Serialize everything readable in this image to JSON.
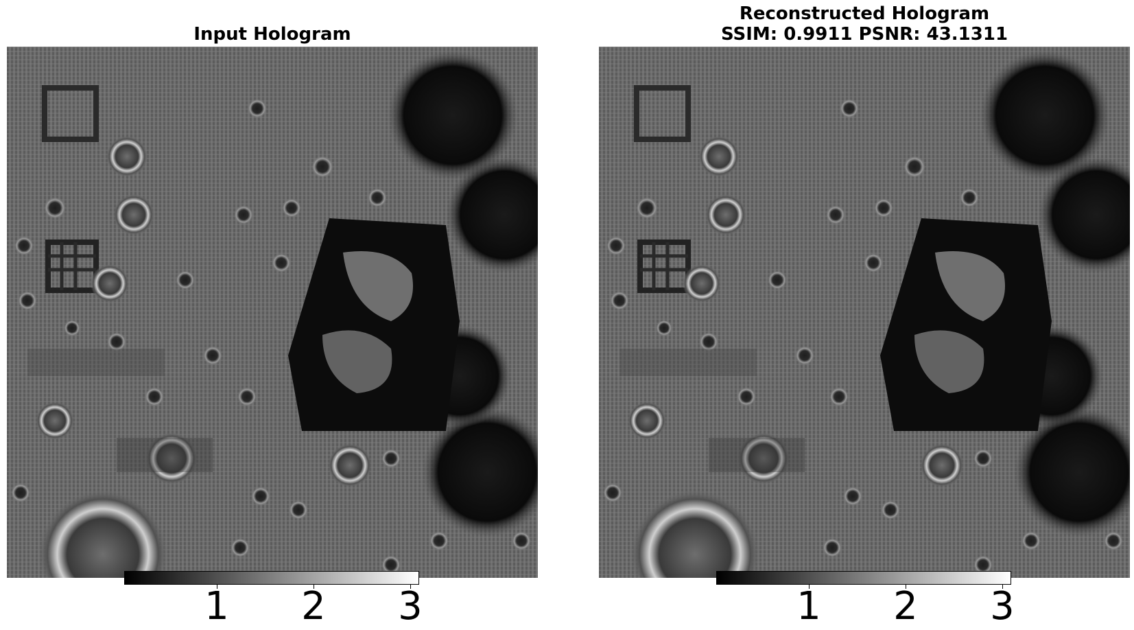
{
  "panels": [
    {
      "id": "input",
      "title_lines": [
        "Input Hologram"
      ],
      "colorbar": {
        "colormap": "gray",
        "color_min": "#000000",
        "color_max": "#ffffff",
        "range": [
          0.0,
          3.05
        ],
        "ticks": [
          "1",
          "2",
          "3"
        ]
      }
    },
    {
      "id": "reconstructed",
      "title_lines": [
        "Reconstructed Hologram",
        "SSIM: 0.9911 PSNR: 43.1311"
      ],
      "colorbar": {
        "colormap": "gray",
        "color_min": "#000000",
        "color_max": "#ffffff",
        "range": [
          0.0,
          3.05
        ],
        "ticks": [
          "1",
          "2",
          "3"
        ]
      }
    }
  ],
  "image_colors": {
    "background_gray": "#6e6e6e",
    "dark_blob": "#0a0a0a",
    "bright_fringe": "#d8d8d8"
  }
}
